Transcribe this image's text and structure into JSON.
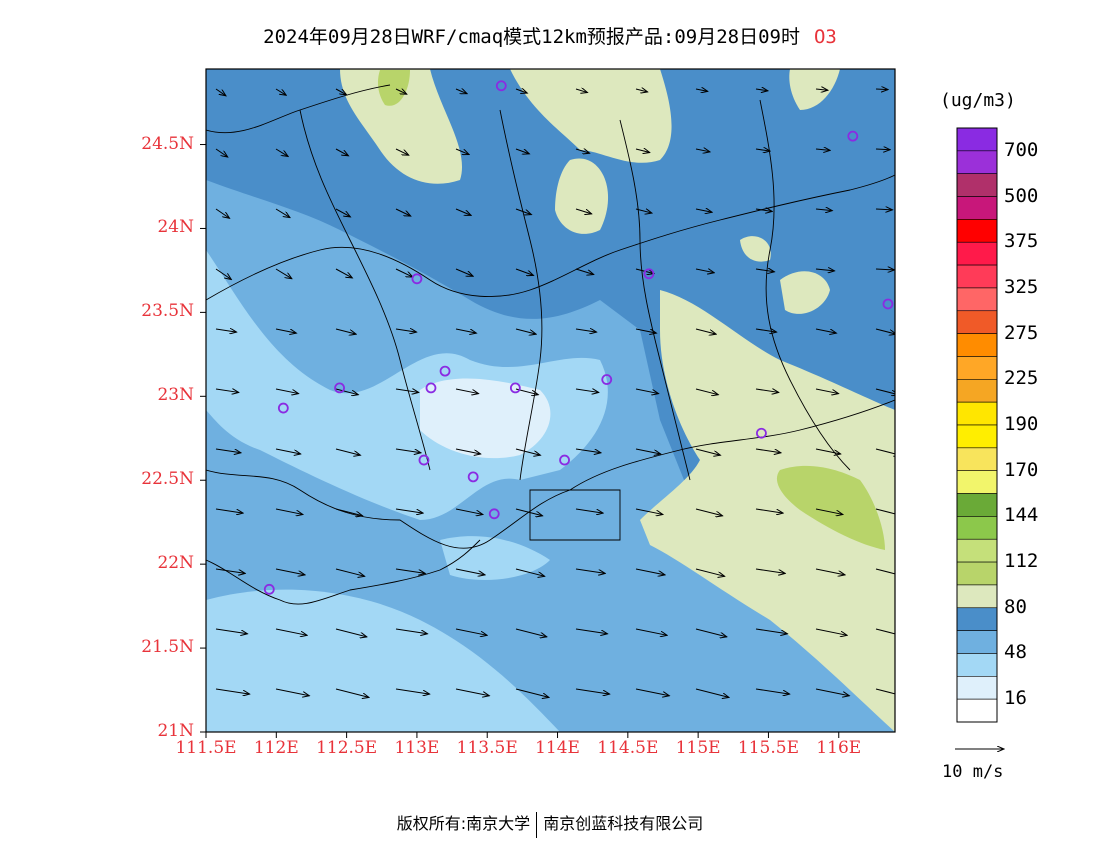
{
  "title": {
    "main": "2024年09月28日WRF/cmaq模式12km预报产品:09月28日09时",
    "species": "O3"
  },
  "map": {
    "lat_labels": [
      "24.5N",
      "24N",
      "23.5N",
      "23N",
      "22.5N",
      "22N",
      "21.5N",
      "21N"
    ],
    "lat_values": [
      24.5,
      24.0,
      23.5,
      23.0,
      22.5,
      22.0,
      21.5,
      21.0
    ],
    "lon_labels": [
      "111.5E",
      "112E",
      "112.5E",
      "113E",
      "113.5E",
      "114E",
      "114.5E",
      "115E",
      "115.5E",
      "116E"
    ],
    "lon_values": [
      111.5,
      112.0,
      112.5,
      113.0,
      113.5,
      114.0,
      114.5,
      115.0,
      115.5,
      116.0
    ],
    "lon_range": [
      111.5,
      116.4
    ],
    "lat_range": [
      21.0,
      24.95
    ],
    "stations": [
      {
        "lon": 113.6,
        "lat": 24.85
      },
      {
        "lon": 116.1,
        "lat": 24.55
      },
      {
        "lon": 113.0,
        "lat": 23.7
      },
      {
        "lon": 114.65,
        "lat": 23.73
      },
      {
        "lon": 116.35,
        "lat": 23.55
      },
      {
        "lon": 112.45,
        "lat": 23.05
      },
      {
        "lon": 112.05,
        "lat": 22.93
      },
      {
        "lon": 113.1,
        "lat": 23.05
      },
      {
        "lon": 113.2,
        "lat": 23.15
      },
      {
        "lon": 113.7,
        "lat": 23.05
      },
      {
        "lon": 114.35,
        "lat": 23.1
      },
      {
        "lon": 115.45,
        "lat": 22.78
      },
      {
        "lon": 113.05,
        "lat": 22.62
      },
      {
        "lon": 113.4,
        "lat": 22.52
      },
      {
        "lon": 114.05,
        "lat": 22.62
      },
      {
        "lon": 113.55,
        "lat": 22.3
      },
      {
        "lon": 111.95,
        "lat": 21.85
      }
    ]
  },
  "colorbar": {
    "unit": "(ug/m3)",
    "levels": [
      "700",
      "500",
      "375",
      "325",
      "275",
      "225",
      "190",
      "170",
      "144",
      "112",
      "80",
      "48",
      "16"
    ],
    "colors_top_to_bottom": [
      "#8a2be2",
      "#9b30d9",
      "#b0306a",
      "#c8177a",
      "#ff0000",
      "#ff1a4a",
      "#ff3b58",
      "#ff6666",
      "#f05a28",
      "#ff8c00",
      "#ffa726",
      "#f5a623",
      "#ffe600",
      "#ffee00",
      "#f8e45c",
      "#f2f56b",
      "#6aaa37",
      "#8cc84b",
      "#c5e07a",
      "#b8d46a",
      "#dde8be",
      "#4a8ec9",
      "#6fb0e0",
      "#a3d8f5",
      "#dff0fb",
      "#ffffff"
    ]
  },
  "wind_reference": {
    "label": "10 m/s"
  },
  "footer": {
    "left": "版权所有:南京大学",
    "right": "南京创蓝科技有限公司"
  }
}
